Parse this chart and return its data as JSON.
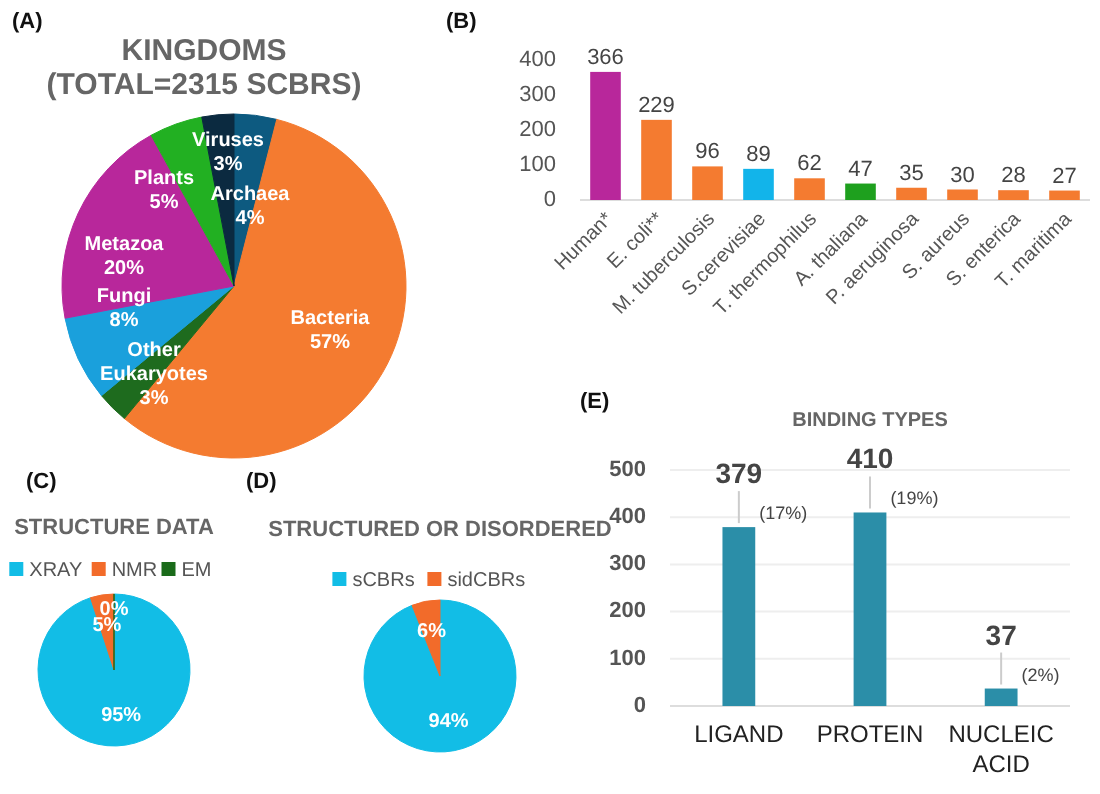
{
  "chart_data": [
    {
      "type": "pie",
      "title": "KINGDOMS",
      "subtitle": "(TOTAL=2315 SCBRS)",
      "annotations": [
        "(A)"
      ],
      "categories": [
        "Archaea",
        "Bacteria",
        "Other Eukaryotes",
        "Fungi",
        "Metazoa",
        "Plants",
        "Viruses"
      ],
      "values": [
        4,
        57,
        3,
        8,
        20,
        5,
        3
      ],
      "value_labels": [
        "4%",
        "57%",
        "3%",
        "8%",
        "20%",
        "5%",
        "3%"
      ],
      "colors": [
        "#0d5a80",
        "#f47b30",
        "#1e6b1e",
        "#1aa0dc",
        "#b8279b",
        "#22b022",
        "#0b2a40"
      ],
      "legend": false
    },
    {
      "type": "bar",
      "annotations": [
        "(B)"
      ],
      "categories": [
        "Human*",
        "E. coli**",
        "M. tuberculosis",
        "S.cerevisiae",
        "T. thermophilus",
        "A. thaliana",
        "P. aeruginosa",
        "S. aureus",
        "S. enterica",
        "T. maritima"
      ],
      "values": [
        366,
        229,
        96,
        89,
        62,
        47,
        35,
        30,
        28,
        27
      ],
      "colors": [
        "#b8279b",
        "#f47b30",
        "#f47b30",
        "#12b4ea",
        "#f47b30",
        "#1ea01e",
        "#f47b30",
        "#f47b30",
        "#f47b30",
        "#f47b30"
      ],
      "ylim": [
        0,
        400
      ],
      "yticks": [
        0,
        100,
        200,
        300,
        400
      ],
      "data_labels": true,
      "grid": false
    },
    {
      "type": "pie",
      "title": "STRUCTURE DATA",
      "annotations": [
        "(C)"
      ],
      "categories": [
        "XRAY",
        "NMR",
        "EM"
      ],
      "values": [
        95,
        5,
        0
      ],
      "value_labels": [
        "95%",
        "5%",
        "0%"
      ],
      "colors": [
        "#12bde6",
        "#f26b2a",
        "#1a6b1a"
      ],
      "legend": "top"
    },
    {
      "type": "pie",
      "title": "STRUCTURED OR DISORDERED",
      "annotations": [
        "(D)"
      ],
      "categories": [
        "sCBRs",
        "sidCBRs"
      ],
      "values": [
        94,
        6
      ],
      "value_labels": [
        "94%",
        "6%"
      ],
      "colors": [
        "#12bde6",
        "#f26b2a"
      ],
      "legend": "top"
    },
    {
      "type": "bar",
      "title": "BINDING TYPES",
      "annotations": [
        "(E)",
        {
          "text": "(17%)",
          "x": "LIGAND",
          "y": 379
        },
        {
          "text": "(19%)",
          "x": "PROTEIN",
          "y": 410
        },
        {
          "text": "(2%)",
          "x": "NUCLEIC ACID",
          "y": 37
        }
      ],
      "categories": [
        "LIGAND",
        "PROTEIN",
        "NUCLEIC ACID"
      ],
      "values": [
        379,
        410,
        37
      ],
      "value_labels": [
        "379",
        "410",
        "37"
      ],
      "color": "#2b8ea8",
      "ylim": [
        0,
        500
      ],
      "yticks": [
        0,
        100,
        200,
        300,
        400,
        500
      ],
      "grid": "y"
    }
  ]
}
